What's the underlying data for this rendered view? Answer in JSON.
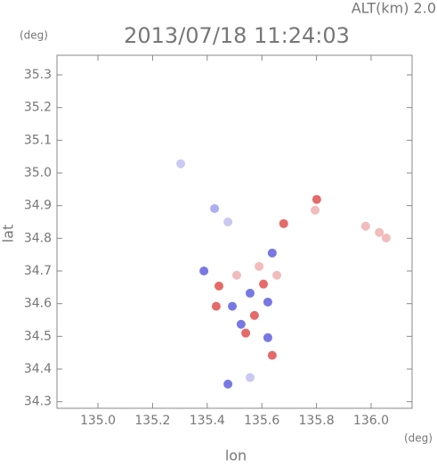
{
  "chart_data": {
    "type": "scatter",
    "title": "2013/07/18 11:24:03",
    "subtitle": "ALT(km)  2.0",
    "y_unit": "(deg)",
    "x_unit": "(deg)",
    "x_label": "lon",
    "y_label": "lat",
    "xlim": [
      134.85,
      136.15
    ],
    "ylim": [
      34.28,
      35.36
    ],
    "xticks": [
      {
        "value": 135,
        "label": "135.0"
      },
      {
        "value": 135.2,
        "label": "135.2"
      },
      {
        "value": 135.4,
        "label": "135.4"
      },
      {
        "value": 135.6,
        "label": "135.6"
      },
      {
        "value": 135.8,
        "label": "135.8"
      },
      {
        "value": 136,
        "label": "136.0"
      }
    ],
    "yticks": [
      34.3,
      34.4,
      34.5,
      34.6,
      34.7,
      34.8,
      34.9,
      {
        "value": 35,
        "label": "35.0"
      },
      35.1,
      35.2,
      35.3
    ],
    "x": [
      135.303,
      135.427,
      135.476,
      135.795,
      135.801,
      135.98,
      136.03,
      136.055,
      135.68,
      135.638,
      135.443,
      135.508,
      135.557,
      135.606,
      135.492,
      135.573,
      135.622,
      135.541,
      135.622,
      135.638,
      135.433,
      135.388,
      135.655,
      135.59,
      135.524,
      135.476,
      135.557
    ],
    "y": [
      35.028,
      34.891,
      34.85,
      34.886,
      34.919,
      34.837,
      34.818,
      34.801,
      34.845,
      34.755,
      34.654,
      34.687,
      34.632,
      34.66,
      34.592,
      34.564,
      34.605,
      34.51,
      34.496,
      34.442,
      34.592,
      34.7,
      34.687,
      34.714,
      34.537,
      34.354,
      34.374
    ],
    "colors": [
      "#c0c0f0",
      "#a0a0f0",
      "#c0c0f0",
      "#f0b0b0",
      "#e05050",
      "#f0b0b0",
      "#f0b0b0",
      "#f0b0b0",
      "#e05050",
      "#6060e0",
      "#e05050",
      "#f0b0b0",
      "#6060e0",
      "#e05050",
      "#6060e0",
      "#e05050",
      "#6060e0",
      "#e05050",
      "#6060e0",
      "#e05050",
      "#e05050",
      "#6060e0",
      "#f0b0b0",
      "#f0b0b0",
      "#6060e0",
      "#6060e0",
      "#c0c0f0"
    ]
  }
}
